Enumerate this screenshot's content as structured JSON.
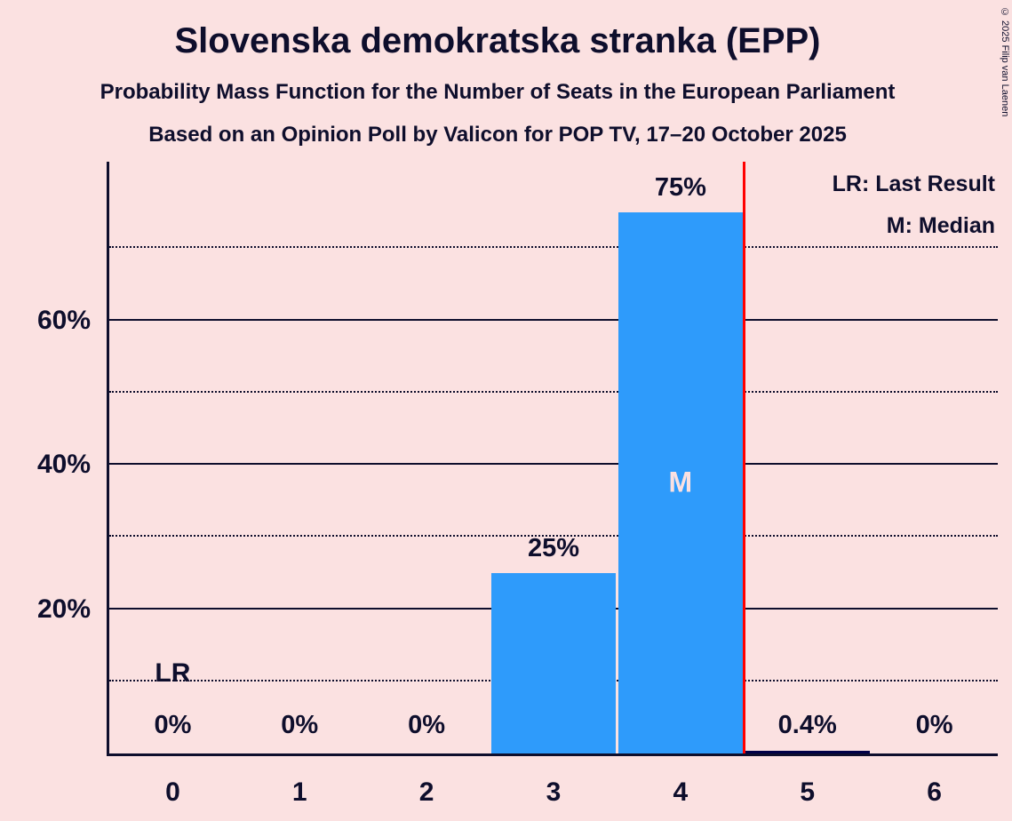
{
  "title": "Slovenska demokratska stranka (EPP)",
  "subtitle1": "Probability Mass Function for the Number of Seats in the European Parliament",
  "subtitle2": "Based on an Opinion Poll by Valicon for POP TV, 17–20 October 2025",
  "copyright": "© 2025 Filip van Laenen",
  "legend": {
    "lr": "LR: Last Result",
    "m": "M: Median"
  },
  "chart_data": {
    "type": "bar",
    "categories": [
      "0",
      "1",
      "2",
      "3",
      "4",
      "5",
      "6"
    ],
    "values": [
      0,
      0,
      0,
      25,
      75,
      0.4,
      0
    ],
    "labels": [
      "0%",
      "0%",
      "0%",
      "25%",
      "75%",
      "0.4%",
      "0%"
    ],
    "bar_colors": [
      "#2E9BFB",
      "#2E9BFB",
      "#2E9BFB",
      "#2E9BFB",
      "#2E9BFB",
      "#000047",
      "#2E9BFB"
    ],
    "xlabel": "",
    "ylabel": "",
    "ylim": [
      0,
      82
    ],
    "y_ticks": [
      {
        "value": 20,
        "label": "20%"
      },
      {
        "value": 40,
        "label": "40%"
      },
      {
        "value": 60,
        "label": "60%"
      }
    ],
    "major_gridlines": [
      20,
      40,
      60
    ],
    "minor_gridlines": [
      10,
      30,
      50,
      70
    ],
    "median_category": "4",
    "median_label": "M",
    "lr_label": "LR",
    "lr_label_category": "0",
    "lr_line_x": 4.5,
    "colors": {
      "bar": "#2E9BFB",
      "small_bar": "#000047",
      "lr_line": "#FF0000",
      "background": "#FBE1E1",
      "text": "#0E0E2C",
      "median_text": "#FBE1E1"
    }
  }
}
